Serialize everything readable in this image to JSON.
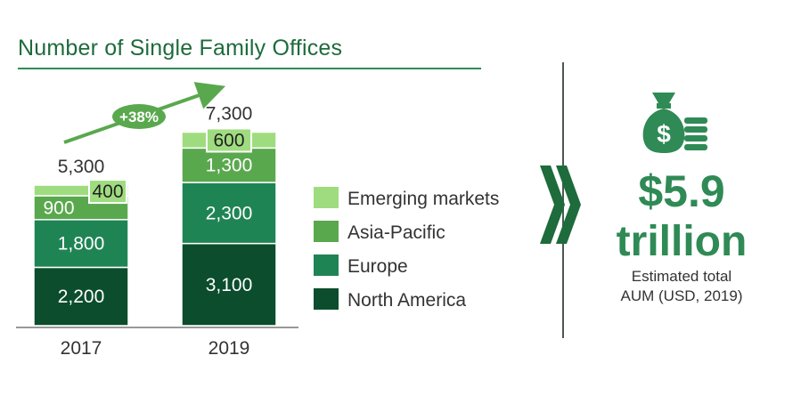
{
  "chart_data": {
    "type": "bar",
    "stacked": true,
    "title": "Number of Single Family Offices",
    "categories": [
      "2017",
      "2019"
    ],
    "series": [
      {
        "name": "North America",
        "values": [
          2200,
          3100
        ],
        "labels": [
          "2,200",
          "3,100"
        ],
        "color": "#0b4d2c"
      },
      {
        "name": "Europe",
        "values": [
          1800,
          2300
        ],
        "labels": [
          "1,800",
          "2,300"
        ],
        "color": "#1f8454"
      },
      {
        "name": "Asia-Pacific",
        "values": [
          900,
          1300
        ],
        "labels": [
          "900",
          "1,300"
        ],
        "color": "#5aa84e"
      },
      {
        "name": "Emerging markets",
        "values": [
          400,
          600
        ],
        "labels": [
          "400",
          "600"
        ],
        "color": "#9fdc7f"
      }
    ],
    "totals": [
      "5,300",
      "7,300"
    ],
    "growth_annotation": "+38%",
    "legend": [
      "Emerging markets",
      "Asia-Pacific",
      "Europe",
      "North America"
    ],
    "legend_position": "right",
    "ylim": [
      0,
      7300
    ]
  },
  "summary": {
    "value": "$5.9",
    "unit": "trillion",
    "caption_line1": "Estimated total",
    "caption_line2": "AUM (USD, 2019)",
    "icon": "money-bag-icon",
    "accent_color": "#2f8a55"
  }
}
